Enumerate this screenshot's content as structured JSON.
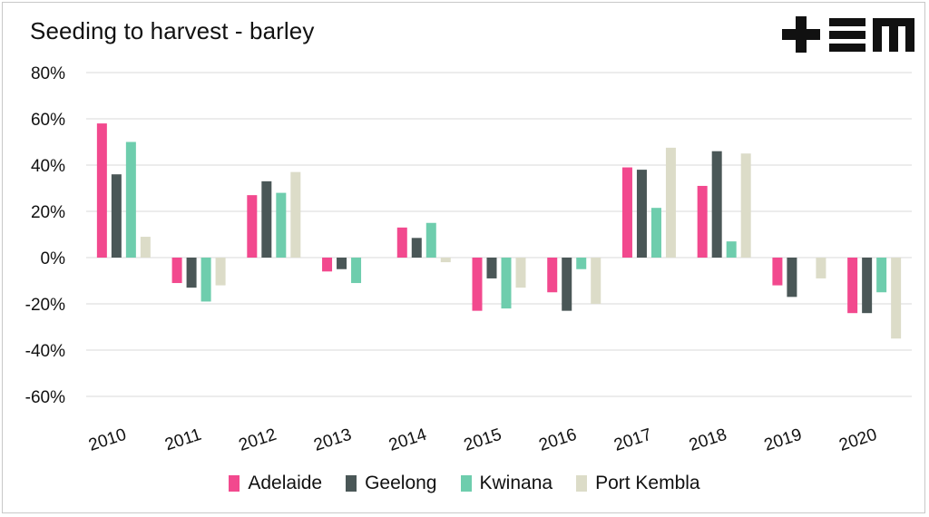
{
  "chart_data": {
    "type": "bar",
    "title": "Seeding to harvest - barley",
    "categories": [
      "2010",
      "2011",
      "2012",
      "2013",
      "2014",
      "2015",
      "2016",
      "2017",
      "2018",
      "2019",
      "2020"
    ],
    "ylim": [
      -60,
      80
    ],
    "yticks": [
      -60,
      -40,
      -20,
      0,
      20,
      40,
      60,
      80
    ],
    "ytick_labels": [
      "-60%",
      "-40%",
      "-20%",
      "0%",
      "20%",
      "40%",
      "60%",
      "80%"
    ],
    "grid": true,
    "legend_position": "bottom",
    "series": [
      {
        "name": "Adelaide",
        "color": "#f2498e",
        "values": [
          58,
          -11,
          27,
          -6,
          13,
          -23,
          -15,
          39,
          31,
          -12,
          -24
        ]
      },
      {
        "name": "Geelong",
        "color": "#4a5757",
        "values": [
          36,
          -13,
          33,
          -5,
          8.5,
          -9,
          -23,
          38,
          46,
          -17,
          -24
        ]
      },
      {
        "name": "Kwinana",
        "color": "#6ecdad",
        "values": [
          50,
          -19,
          28,
          -11,
          15,
          -22,
          -5,
          21.5,
          7,
          0,
          -15
        ]
      },
      {
        "name": "Port Kembla",
        "color": "#dcdcc8",
        "values": [
          9,
          -12,
          37,
          0,
          -2,
          -13,
          -20,
          47.5,
          45,
          -9,
          -35
        ]
      }
    ]
  },
  "logo": {
    "text": "+EM"
  }
}
